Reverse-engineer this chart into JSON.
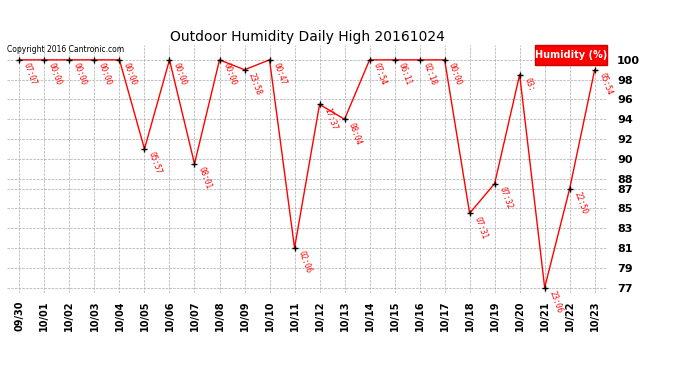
{
  "title": "Outdoor Humidity Daily High 20161024",
  "copyright": "Copyright 2016 Cantronic.com",
  "background_color": "#ffffff",
  "grid_color": "#aaaaaa",
  "line_color": "#ff0000",
  "point_color": "#000000",
  "ylim": [
    76.5,
    101.5
  ],
  "points": [
    {
      "xi": 0,
      "y": 100,
      "label": "07:07"
    },
    {
      "xi": 1,
      "y": 100,
      "label": "00:00"
    },
    {
      "xi": 2,
      "y": 100,
      "label": "00:00"
    },
    {
      "xi": 3,
      "y": 100,
      "label": "00:00"
    },
    {
      "xi": 4,
      "y": 100,
      "label": "00:00"
    },
    {
      "xi": 5,
      "y": 91,
      "label": "05:57"
    },
    {
      "xi": 6,
      "y": 100,
      "label": "00:00"
    },
    {
      "xi": 7,
      "y": 89.5,
      "label": "08:01"
    },
    {
      "xi": 8,
      "y": 100,
      "label": "00:00"
    },
    {
      "xi": 9,
      "y": 99,
      "label": "23:58"
    },
    {
      "xi": 10,
      "y": 100,
      "label": "00:47"
    },
    {
      "xi": 11,
      "y": 81,
      "label": "02:06"
    },
    {
      "xi": 12,
      "y": 95.5,
      "label": "17:37"
    },
    {
      "xi": 13,
      "y": 94,
      "label": "08:04"
    },
    {
      "xi": 14,
      "y": 100,
      "label": "07:54"
    },
    {
      "xi": 15,
      "y": 100,
      "label": "06:11"
    },
    {
      "xi": 16,
      "y": 100,
      "label": "02:18"
    },
    {
      "xi": 17,
      "y": 100,
      "label": "00:00"
    },
    {
      "xi": 18,
      "y": 84.5,
      "label": "07:31"
    },
    {
      "xi": 19,
      "y": 87.5,
      "label": "07:32"
    },
    {
      "xi": 20,
      "y": 98.5,
      "label": "03:"
    },
    {
      "xi": 21,
      "y": 77,
      "label": "23:06"
    },
    {
      "xi": 22,
      "y": 87,
      "label": "22:50"
    },
    {
      "xi": 23,
      "y": 99,
      "label": "05:54"
    }
  ],
  "xtick_labels": [
    "09/30",
    "10/01",
    "10/02",
    "10/03",
    "10/04",
    "10/05",
    "10/06",
    "10/07",
    "10/08",
    "10/09",
    "10/10",
    "10/11",
    "10/12",
    "10/13",
    "10/14",
    "10/15",
    "10/16",
    "10/17",
    "10/18",
    "10/19",
    "10/20",
    "10/21",
    "10/22",
    "10/23"
  ],
  "yticks": [
    77,
    79,
    81,
    83,
    85,
    87,
    88,
    90,
    92,
    94,
    96,
    98,
    100
  ],
  "legend_label": "Humidity (%)",
  "legend_bg": "#ff0000",
  "legend_fg": "#ffffff"
}
